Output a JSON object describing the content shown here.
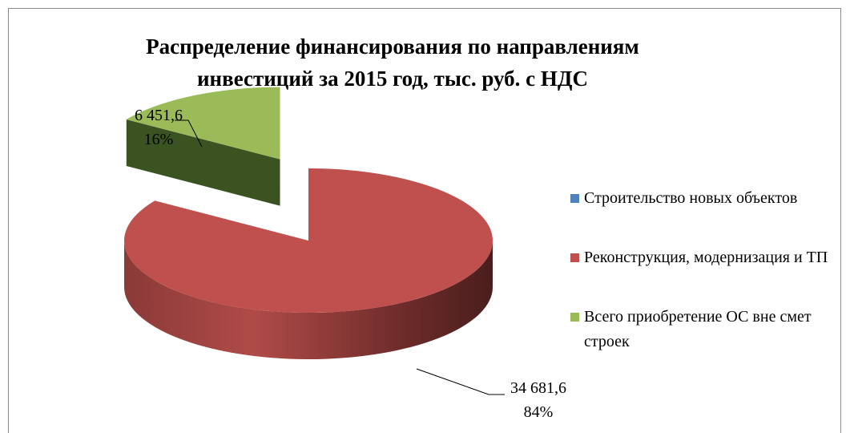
{
  "chart_data": {
    "type": "pie",
    "title": "Распределение финансирования  по направлениям инвестиций за 2015 год, тыс. руб. с НДС",
    "categories": [
      "Строительство новых объектов",
      "Реконструкция, модернизация и ТП",
      "Всего приобретение ОС вне смет строек"
    ],
    "values": [
      0,
      34681.6,
      6451.6
    ],
    "value_labels": [
      null,
      "34 681,6",
      "6 451,6"
    ],
    "percents": [
      0,
      84,
      16
    ],
    "percent_labels": [
      null,
      "84%",
      "16%"
    ],
    "colors": [
      "#4f81bd",
      "#c0504d",
      "#9bbb59"
    ],
    "legend": "right"
  }
}
